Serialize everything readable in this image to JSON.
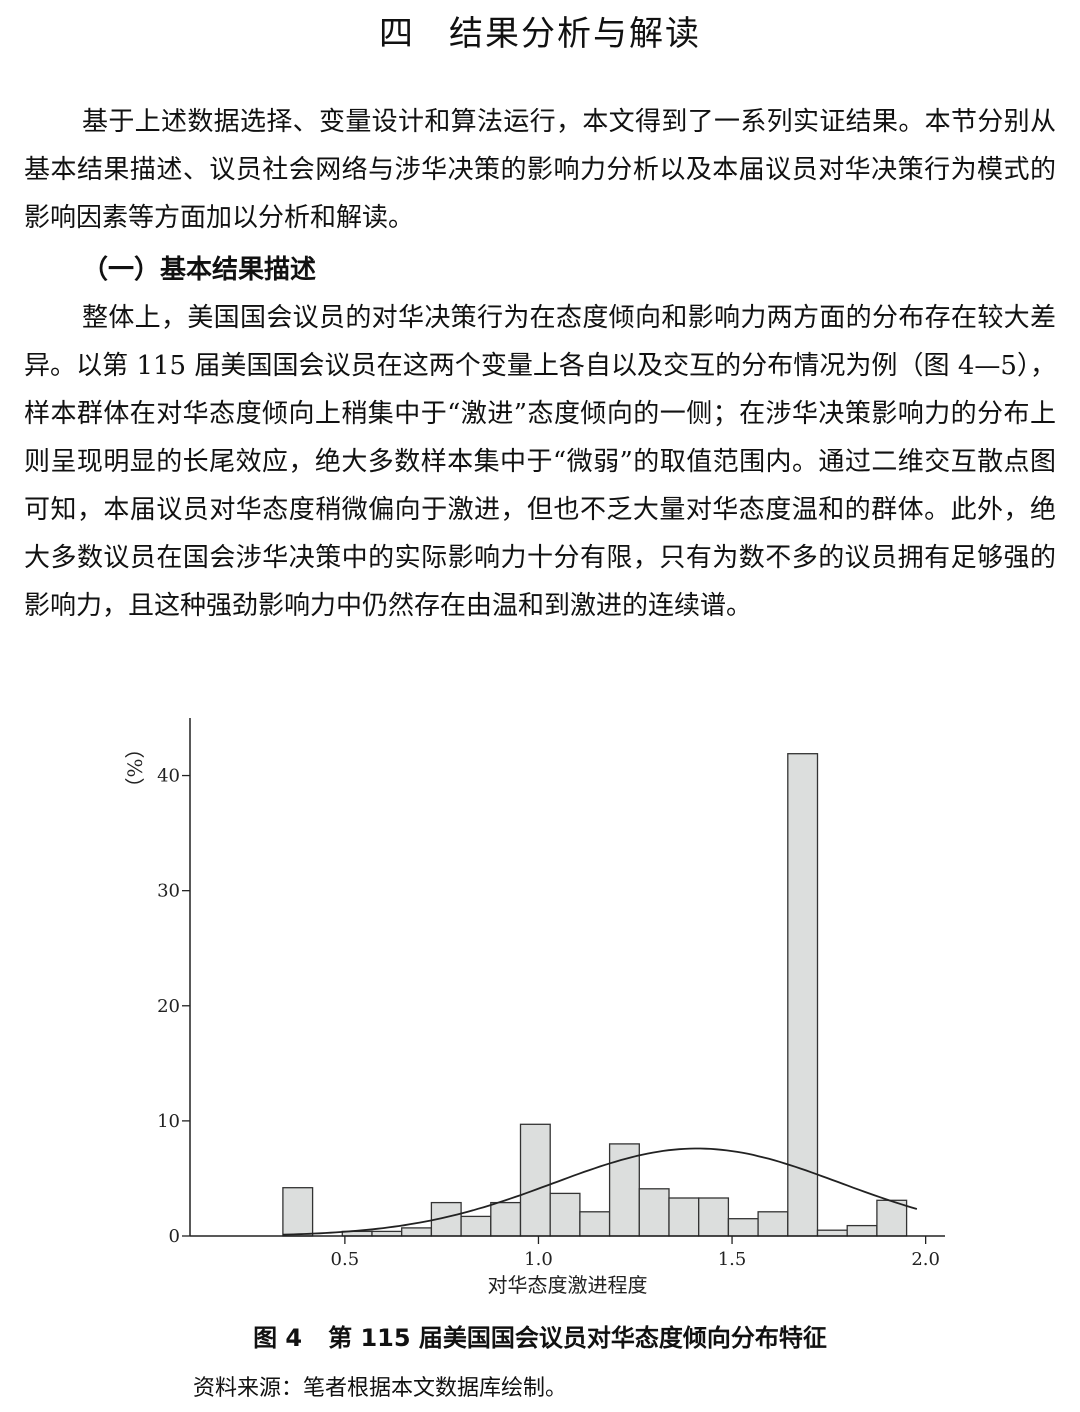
{
  "section": {
    "number": "四",
    "title": "结果分析与解读"
  },
  "intro_paragraph": "基于上述数据选择、变量设计和算法运行，本文得到了一系列实证结果。本节分别从基本结果描述、议员社会网络与涉华决策的影响力分析以及本届议员对华决策行为模式的影响因素等方面加以分析和解读。",
  "subsection_title": "（一）基本结果描述",
  "body_paragraph": "整体上，美国国会议员的对华决策行为在态度倾向和影响力两方面的分布存在较大差异。以第 115 届美国国会议员在这两个变量上各自以及交互的分布情况为例（图 4—5），样本群体在对华态度倾向上稍集中于“激进”态度倾向的一侧；在涉华决策影响力的分布上则呈现明显的长尾效应，绝大多数样本集中于“微弱”的取值范围内。通过二维交互散点图可知，本届议员对华态度稍微偏向于激进，但也不乏大量对华态度温和的群体。此外，绝大多数议员在国会涉华决策中的实际影响力十分有限，只有为数不多的议员拥有足够强的影响力，且这种强劲影响力中仍然存在由温和到激进的连续谱。",
  "figure": {
    "number": "图 4",
    "title": "第 115 届美国国会议员对华态度倾向分布特征",
    "source": "资料来源：笔者根据本文数据库绘制。"
  },
  "chart_data": {
    "type": "bar",
    "subtype": "histogram-with-normal-curve",
    "xlabel": "对华态度激进程度",
    "ylabel": "%",
    "xlim": [
      0.1,
      2.05
    ],
    "ylim": [
      0,
      45
    ],
    "xticks": [
      "0.5",
      "1.0",
      "1.5",
      "2.0"
    ],
    "xtick_values": [
      0.5,
      1.0,
      1.5,
      2.0
    ],
    "yticks": [
      "0",
      "10",
      "20",
      "30",
      "40"
    ],
    "ytick_values": [
      0,
      10,
      20,
      30,
      40
    ],
    "bin_width": 0.0767,
    "bin_starts": [
      0.34,
      0.4167,
      0.4934,
      0.5701,
      0.6468,
      0.7235,
      0.8002,
      0.8769,
      0.9536,
      1.0303,
      1.107,
      1.1837,
      1.2604,
      1.3371,
      1.4138,
      1.4905,
      1.5672,
      1.6439,
      1.7206,
      1.7973,
      1.874,
      1.9507
    ],
    "values": [
      4.2,
      0.0,
      0.4,
      0.4,
      0.7,
      2.9,
      1.7,
      2.9,
      9.7,
      3.7,
      2.1,
      8.0,
      4.1,
      3.3,
      3.3,
      1.5,
      2.1,
      41.9,
      0.5,
      0.9,
      3.1,
      0.0
    ],
    "normal_curve": {
      "mean": 1.41,
      "sd": 0.37,
      "peak": 7.6
    },
    "grid": false,
    "colors": {
      "bar_fill": "#dcdedd",
      "bar_stroke": "#333333",
      "curve": "#222222",
      "axis": "#222222"
    }
  }
}
